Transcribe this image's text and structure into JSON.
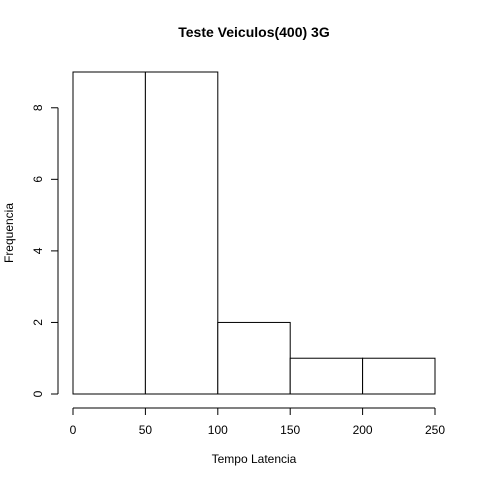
{
  "chart_data": {
    "type": "bar",
    "title": "Teste Veiculos(400) 3G",
    "xlabel": "Tempo Latencia",
    "ylabel": "Frequencia",
    "bins": [
      {
        "from": 0,
        "to": 50,
        "count": 9
      },
      {
        "from": 50,
        "to": 100,
        "count": 9
      },
      {
        "from": 100,
        "to": 150,
        "count": 2
      },
      {
        "from": 150,
        "to": 200,
        "count": 1
      },
      {
        "from": 200,
        "to": 250,
        "count": 1
      }
    ],
    "x_ticks": [
      0,
      50,
      100,
      150,
      200,
      250
    ],
    "y_ticks": [
      0,
      2,
      4,
      6,
      8
    ],
    "xlim": [
      0,
      250
    ],
    "ylim": [
      0,
      9
    ],
    "grid": false,
    "colors": {
      "bar_fill": "#ffffff",
      "bar_stroke": "#000000"
    }
  }
}
